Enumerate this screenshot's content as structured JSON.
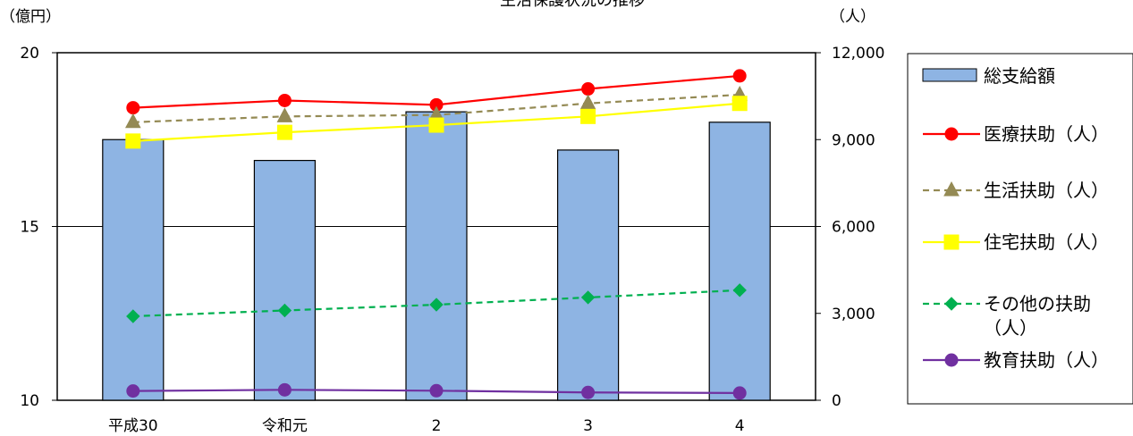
{
  "chart_data": {
    "type": "bar+line",
    "title": "生活保護状況の推移",
    "y_left_unit": "（億円）",
    "y_right_unit": "（人）",
    "categories": [
      "平成30",
      "令和元",
      "2",
      "3",
      "4"
    ],
    "y_left": {
      "min": 10,
      "max": 20,
      "ticks": [
        "10",
        "15",
        "20"
      ]
    },
    "y_right": {
      "min": 0,
      "max": 12000,
      "ticks": [
        "0",
        "3,000",
        "6,000",
        "9,000",
        "12,000"
      ]
    },
    "bar_series": {
      "name": "総支給額",
      "values": [
        17.5,
        16.9,
        18.3,
        17.2,
        18.0
      ],
      "color": "#8EB4E3"
    },
    "line_series": [
      {
        "name": "医療扶助（人）",
        "values": [
          10100,
          10350,
          10200,
          10750,
          11200
        ],
        "color": "#FF0000",
        "marker": "circle",
        "dash": false
      },
      {
        "name": "生活扶助（人）",
        "values": [
          9600,
          9800,
          9850,
          10250,
          10550
        ],
        "color": "#948A54",
        "marker": "triangle",
        "dash": true
      },
      {
        "name": "住宅扶助（人）",
        "values": [
          8950,
          9250,
          9500,
          9800,
          10250
        ],
        "color": "#FFFF00",
        "marker": "square",
        "dash": false
      },
      {
        "name": "その他の扶助（人）",
        "values": [
          2900,
          3100,
          3300,
          3550,
          3800
        ],
        "color": "#00B050",
        "marker": "diamond",
        "dash": true
      },
      {
        "name": "教育扶助（人）",
        "values": [
          320,
          360,
          330,
          270,
          250
        ],
        "color": "#7030A0",
        "marker": "circle",
        "dash": false
      }
    ],
    "grid": true,
    "legend_position": "right"
  }
}
